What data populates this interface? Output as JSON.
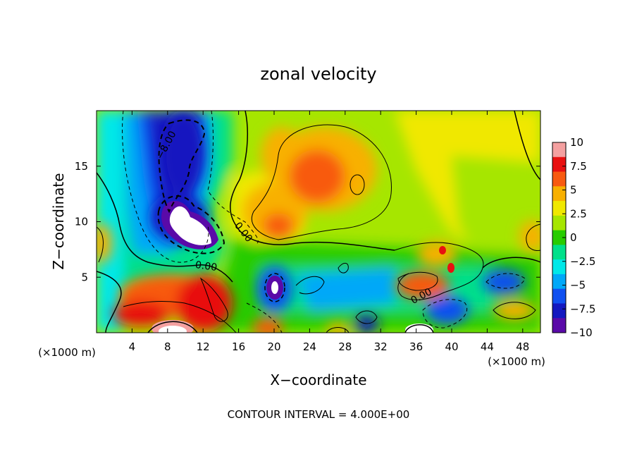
{
  "chart_data": {
    "type": "heatmap",
    "title": "zonal velocity",
    "xlabel": "X−coordinate",
    "ylabel": "Z−coordinate",
    "x_unit_label": "(×1000 m)",
    "xlim": [
      0,
      50
    ],
    "ylim": [
      0,
      20
    ],
    "x_ticks": [
      "4",
      "8",
      "12",
      "16",
      "20",
      "24",
      "28",
      "32",
      "36",
      "40",
      "44",
      "48"
    ],
    "y_ticks": [
      "5",
      "10",
      "15"
    ],
    "contour_interval_text": "CONTOUR INTERVAL = 4.000E+00",
    "contour_labels": [
      "−8.00",
      "0.00",
      "0.00",
      "0.00"
    ],
    "colorbar": {
      "range": [
        -10,
        10
      ],
      "tick_labels": [
        "10",
        "7.5",
        "5",
        "2.5",
        "0",
        "−2.5",
        "−5",
        "−7.5",
        "−10"
      ],
      "colors": [
        "#f4a0a0",
        "#e81010",
        "#f85a10",
        "#f8b000",
        "#f0e800",
        "#a6e600",
        "#28cc00",
        "#00e08a",
        "#00e8e8",
        "#00a8f8",
        "#1050f0",
        "#1418c0",
        "#5a0aa8"
      ]
    },
    "features": [
      {
        "x": 8,
        "z": 16.5,
        "value": -9
      },
      {
        "x": 7,
        "z": 11,
        "value": -10
      },
      {
        "x": 3,
        "z": 8,
        "value": -4
      },
      {
        "x": 25,
        "z": 14.5,
        "value": 8
      },
      {
        "x": 22,
        "z": 11,
        "value": 6
      },
      {
        "x": 9,
        "z": 2.5,
        "value": 8
      },
      {
        "x": 20,
        "z": 4.2,
        "value": -10
      },
      {
        "x": 36,
        "z": 4,
        "value": 7
      },
      {
        "x": 39,
        "z": 7.5,
        "value": 6
      },
      {
        "x": 38,
        "z": 2,
        "value": -8
      },
      {
        "x": 45,
        "z": 2,
        "value": 5
      },
      {
        "x": 43,
        "z": 15,
        "value": 3
      },
      {
        "x": 48,
        "z": 8,
        "value": 4
      },
      {
        "x": 1,
        "z": 17,
        "value": -1
      }
    ]
  }
}
